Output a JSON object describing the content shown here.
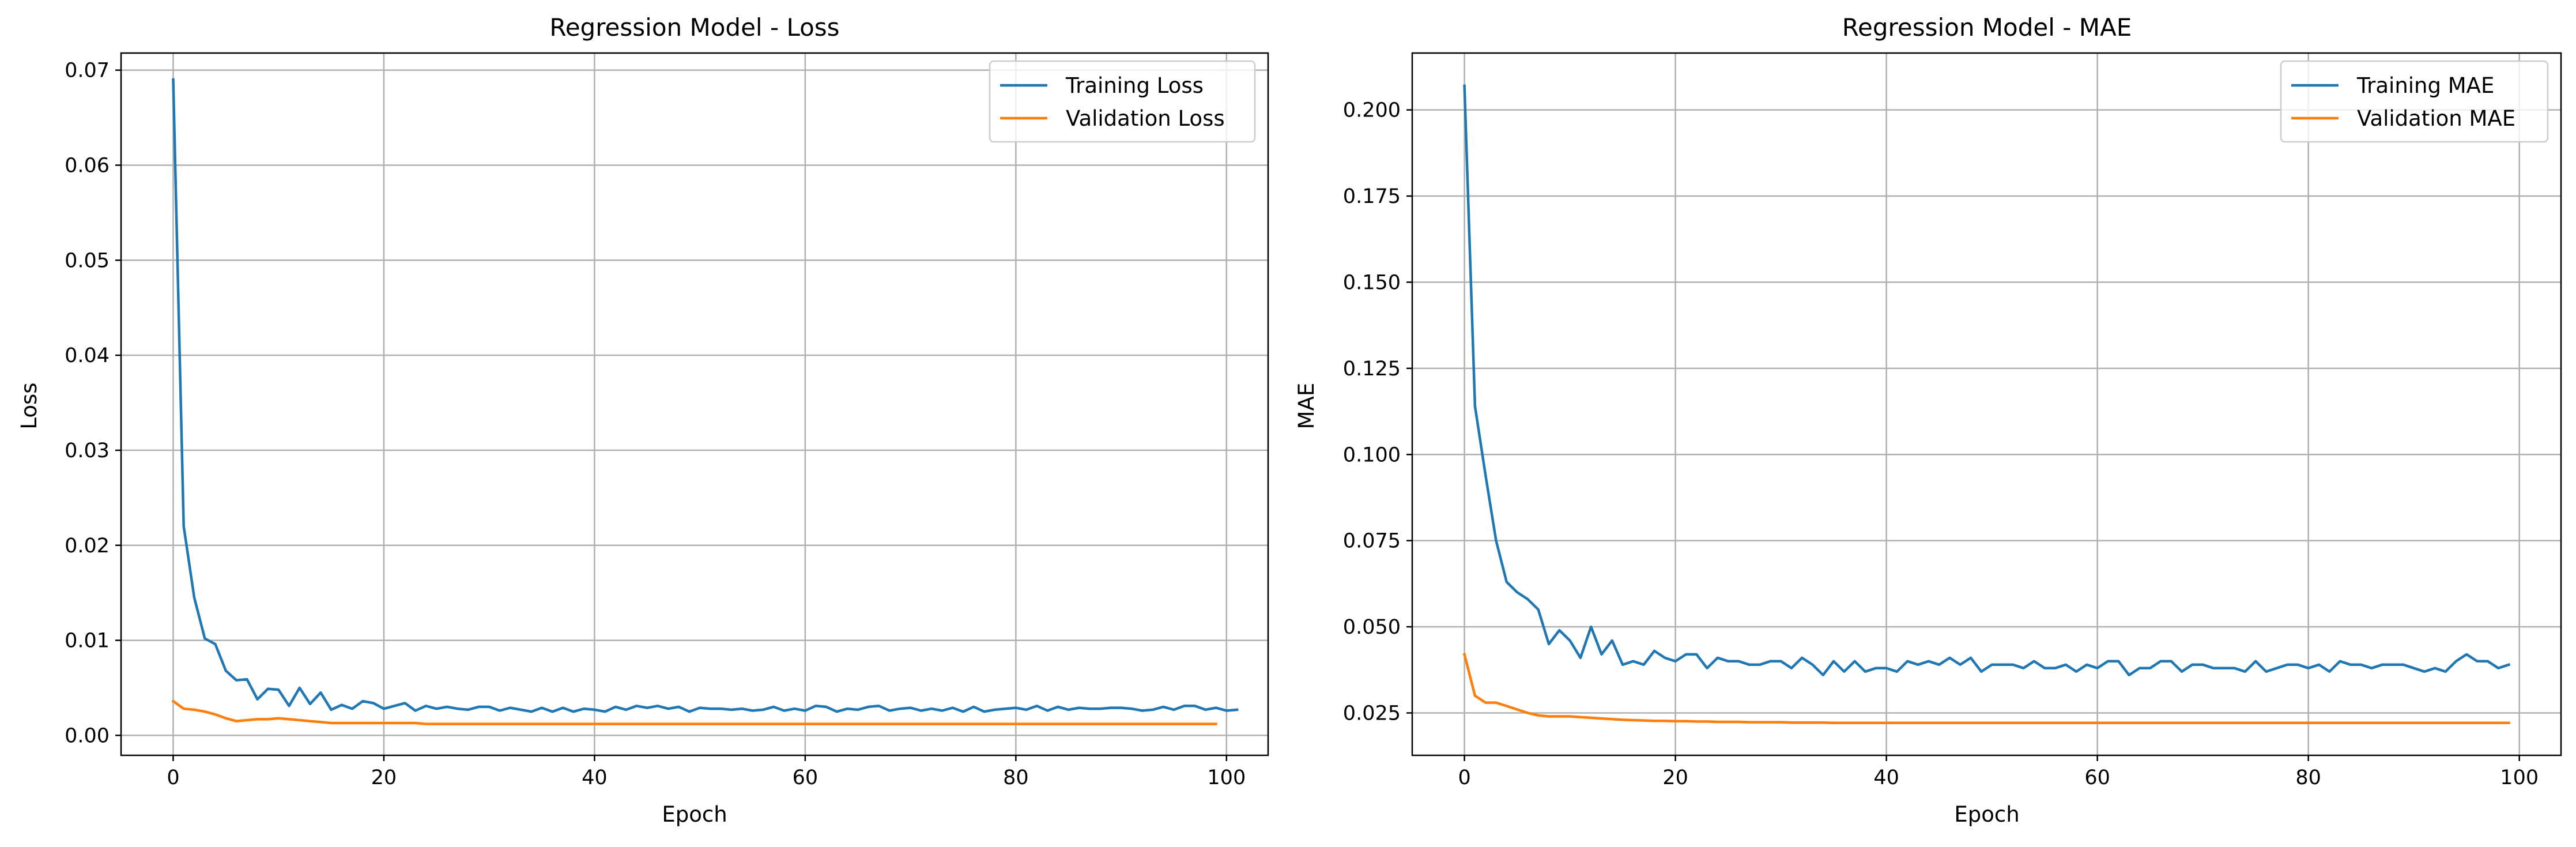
{
  "chart_data": [
    {
      "type": "line",
      "title": "Regression Model - Loss",
      "xlabel": "Epoch",
      "ylabel": "Loss",
      "xlim": [
        -4.95,
        103.95
      ],
      "ylim": [
        -0.0021,
        0.0718
      ],
      "xticks": [
        0,
        20,
        40,
        60,
        80,
        100
      ],
      "xtick_labels": [
        "0",
        "20",
        "40",
        "60",
        "80",
        "100"
      ],
      "yticks": [
        0.0,
        0.01,
        0.02,
        0.03,
        0.04,
        0.05,
        0.06,
        0.07
      ],
      "ytick_labels": [
        "0.00",
        "0.01",
        "0.02",
        "0.03",
        "0.04",
        "0.05",
        "0.06",
        "0.07"
      ],
      "grid": true,
      "legend_position": "top-right",
      "series": [
        {
          "name": "Training Loss",
          "color": "#1f77b4",
          "y": [
            0.069,
            0.022,
            0.0145,
            0.0102,
            0.0096,
            0.0068,
            0.0058,
            0.0059,
            0.0038,
            0.0049,
            0.0048,
            0.0031,
            0.005,
            0.0033,
            0.0045,
            0.0027,
            0.0032,
            0.0028,
            0.0036,
            0.0034,
            0.0028,
            0.0031,
            0.0034,
            0.0026,
            0.0031,
            0.0028,
            0.003,
            0.0028,
            0.0027,
            0.003,
            0.003,
            0.0026,
            0.0029,
            0.0027,
            0.0025,
            0.0029,
            0.0025,
            0.0029,
            0.0025,
            0.0028,
            0.0027,
            0.0025,
            0.003,
            0.0027,
            0.0031,
            0.0029,
            0.0031,
            0.0028,
            0.003,
            0.0025,
            0.0029,
            0.0028,
            0.0028,
            0.0027,
            0.0028,
            0.0026,
            0.0027,
            0.003,
            0.0026,
            0.0028,
            0.0026,
            0.0031,
            0.003,
            0.0025,
            0.0028,
            0.0027,
            0.003,
            0.0031,
            0.0026,
            0.0028,
            0.0029,
            0.0026,
            0.0028,
            0.0026,
            0.0029,
            0.0025,
            0.003,
            0.0025,
            0.0027,
            0.0028,
            0.0029,
            0.0027,
            0.0031,
            0.0026,
            0.003,
            0.0027,
            0.0029,
            0.0028,
            0.0028,
            0.0029,
            0.0029,
            0.0028,
            0.0026,
            0.0027,
            0.003,
            0.0027,
            0.0031,
            0.0031,
            0.0027,
            0.0029,
            0.0026,
            0.0027
          ]
        },
        {
          "name": "Validation Loss",
          "color": "#ff7f0e",
          "y": [
            0.0036,
            0.0028,
            0.0027,
            0.0025,
            0.0022,
            0.0018,
            0.0015,
            0.0016,
            0.0017,
            0.0017,
            0.0018,
            0.0017,
            0.0016,
            0.0015,
            0.0014,
            0.0013,
            0.0013,
            0.0013,
            0.0013,
            0.0013,
            0.0013,
            0.0013,
            0.0013,
            0.0013,
            0.0012,
            0.0012,
            0.0012,
            0.0012,
            0.0012,
            0.0012,
            0.0012,
            0.0012,
            0.0012,
            0.0012,
            0.0012,
            0.0012,
            0.0012,
            0.0012,
            0.0012,
            0.0012,
            0.0012,
            0.0012,
            0.0012,
            0.0012,
            0.0012,
            0.0012,
            0.0012,
            0.0012,
            0.0012,
            0.0012,
            0.0012,
            0.0012,
            0.0012,
            0.0012,
            0.0012,
            0.0012,
            0.0012,
            0.0012,
            0.0012,
            0.0012,
            0.0012,
            0.0012,
            0.0012,
            0.0012,
            0.0012,
            0.0012,
            0.0012,
            0.0012,
            0.0012,
            0.0012,
            0.0012,
            0.0012,
            0.0012,
            0.0012,
            0.0012,
            0.0012,
            0.0012,
            0.0012,
            0.0012,
            0.0012,
            0.0012,
            0.0012,
            0.0012,
            0.0012,
            0.0012,
            0.0012,
            0.0012,
            0.0012,
            0.0012,
            0.0012,
            0.0012,
            0.0012,
            0.0012,
            0.0012,
            0.0012,
            0.0012,
            0.0012,
            0.0012,
            0.0012,
            0.0012
          ]
        }
      ]
    },
    {
      "type": "line",
      "title": "Regression Model - MAE",
      "xlabel": "Epoch",
      "ylabel": "MAE",
      "xlim": [
        -4.95,
        103.95
      ],
      "ylim": [
        0.0127,
        0.2165
      ],
      "xticks": [
        0,
        20,
        40,
        60,
        80,
        100
      ],
      "xtick_labels": [
        "0",
        "20",
        "40",
        "60",
        "80",
        "100"
      ],
      "yticks": [
        0.025,
        0.05,
        0.075,
        0.1,
        0.125,
        0.15,
        0.175,
        0.2
      ],
      "ytick_labels": [
        "0.025",
        "0.050",
        "0.075",
        "0.100",
        "0.125",
        "0.150",
        "0.175",
        "0.200"
      ],
      "grid": true,
      "legend_position": "top-right",
      "series": [
        {
          "name": "Training MAE",
          "color": "#1f77b4",
          "y": [
            0.207,
            0.114,
            0.094,
            0.075,
            0.063,
            0.06,
            0.058,
            0.055,
            0.045,
            0.049,
            0.046,
            0.041,
            0.05,
            0.042,
            0.046,
            0.039,
            0.04,
            0.039,
            0.043,
            0.041,
            0.04,
            0.042,
            0.042,
            0.038,
            0.041,
            0.04,
            0.04,
            0.039,
            0.039,
            0.04,
            0.04,
            0.038,
            0.041,
            0.039,
            0.036,
            0.04,
            0.037,
            0.04,
            0.037,
            0.038,
            0.038,
            0.037,
            0.04,
            0.039,
            0.04,
            0.039,
            0.041,
            0.039,
            0.041,
            0.037,
            0.039,
            0.039,
            0.039,
            0.038,
            0.04,
            0.038,
            0.038,
            0.039,
            0.037,
            0.039,
            0.038,
            0.04,
            0.04,
            0.036,
            0.038,
            0.038,
            0.04,
            0.04,
            0.037,
            0.039,
            0.039,
            0.038,
            0.038,
            0.038,
            0.037,
            0.04,
            0.037,
            0.038,
            0.039,
            0.039,
            0.038,
            0.039,
            0.037,
            0.04,
            0.039,
            0.039,
            0.038,
            0.039,
            0.039,
            0.039,
            0.038,
            0.037,
            0.038,
            0.037,
            0.04,
            0.042,
            0.04,
            0.04,
            0.038,
            0.039
          ]
        },
        {
          "name": "Validation MAE",
          "color": "#ff7f0e",
          "y": [
            0.042,
            0.03,
            0.028,
            0.028,
            0.027,
            0.026,
            0.025,
            0.0243,
            0.024,
            0.024,
            0.024,
            0.0238,
            0.0236,
            0.0234,
            0.0232,
            0.023,
            0.0229,
            0.0228,
            0.0227,
            0.0227,
            0.0226,
            0.0226,
            0.0225,
            0.0225,
            0.0224,
            0.0224,
            0.0224,
            0.0223,
            0.0223,
            0.0223,
            0.0223,
            0.0222,
            0.0222,
            0.0222,
            0.0222,
            0.0221,
            0.0221,
            0.0221,
            0.0221,
            0.0221,
            0.0221,
            0.0221,
            0.0221,
            0.0221,
            0.0221,
            0.0221,
            0.0221,
            0.0221,
            0.0221,
            0.0221,
            0.0221,
            0.0221,
            0.0221,
            0.0221,
            0.0221,
            0.0221,
            0.0221,
            0.0221,
            0.0221,
            0.0221,
            0.0221,
            0.0221,
            0.0221,
            0.0221,
            0.0221,
            0.0221,
            0.0221,
            0.0221,
            0.0221,
            0.0221,
            0.0221,
            0.0221,
            0.0221,
            0.0221,
            0.0221,
            0.0221,
            0.0221,
            0.0221,
            0.0221,
            0.0221,
            0.0221,
            0.0221,
            0.0221,
            0.0221,
            0.0221,
            0.0221,
            0.0221,
            0.0221,
            0.0221,
            0.0221,
            0.0221,
            0.0221,
            0.0221,
            0.0221,
            0.0221,
            0.0221,
            0.0221,
            0.0221,
            0.0221,
            0.0221
          ]
        }
      ]
    }
  ]
}
